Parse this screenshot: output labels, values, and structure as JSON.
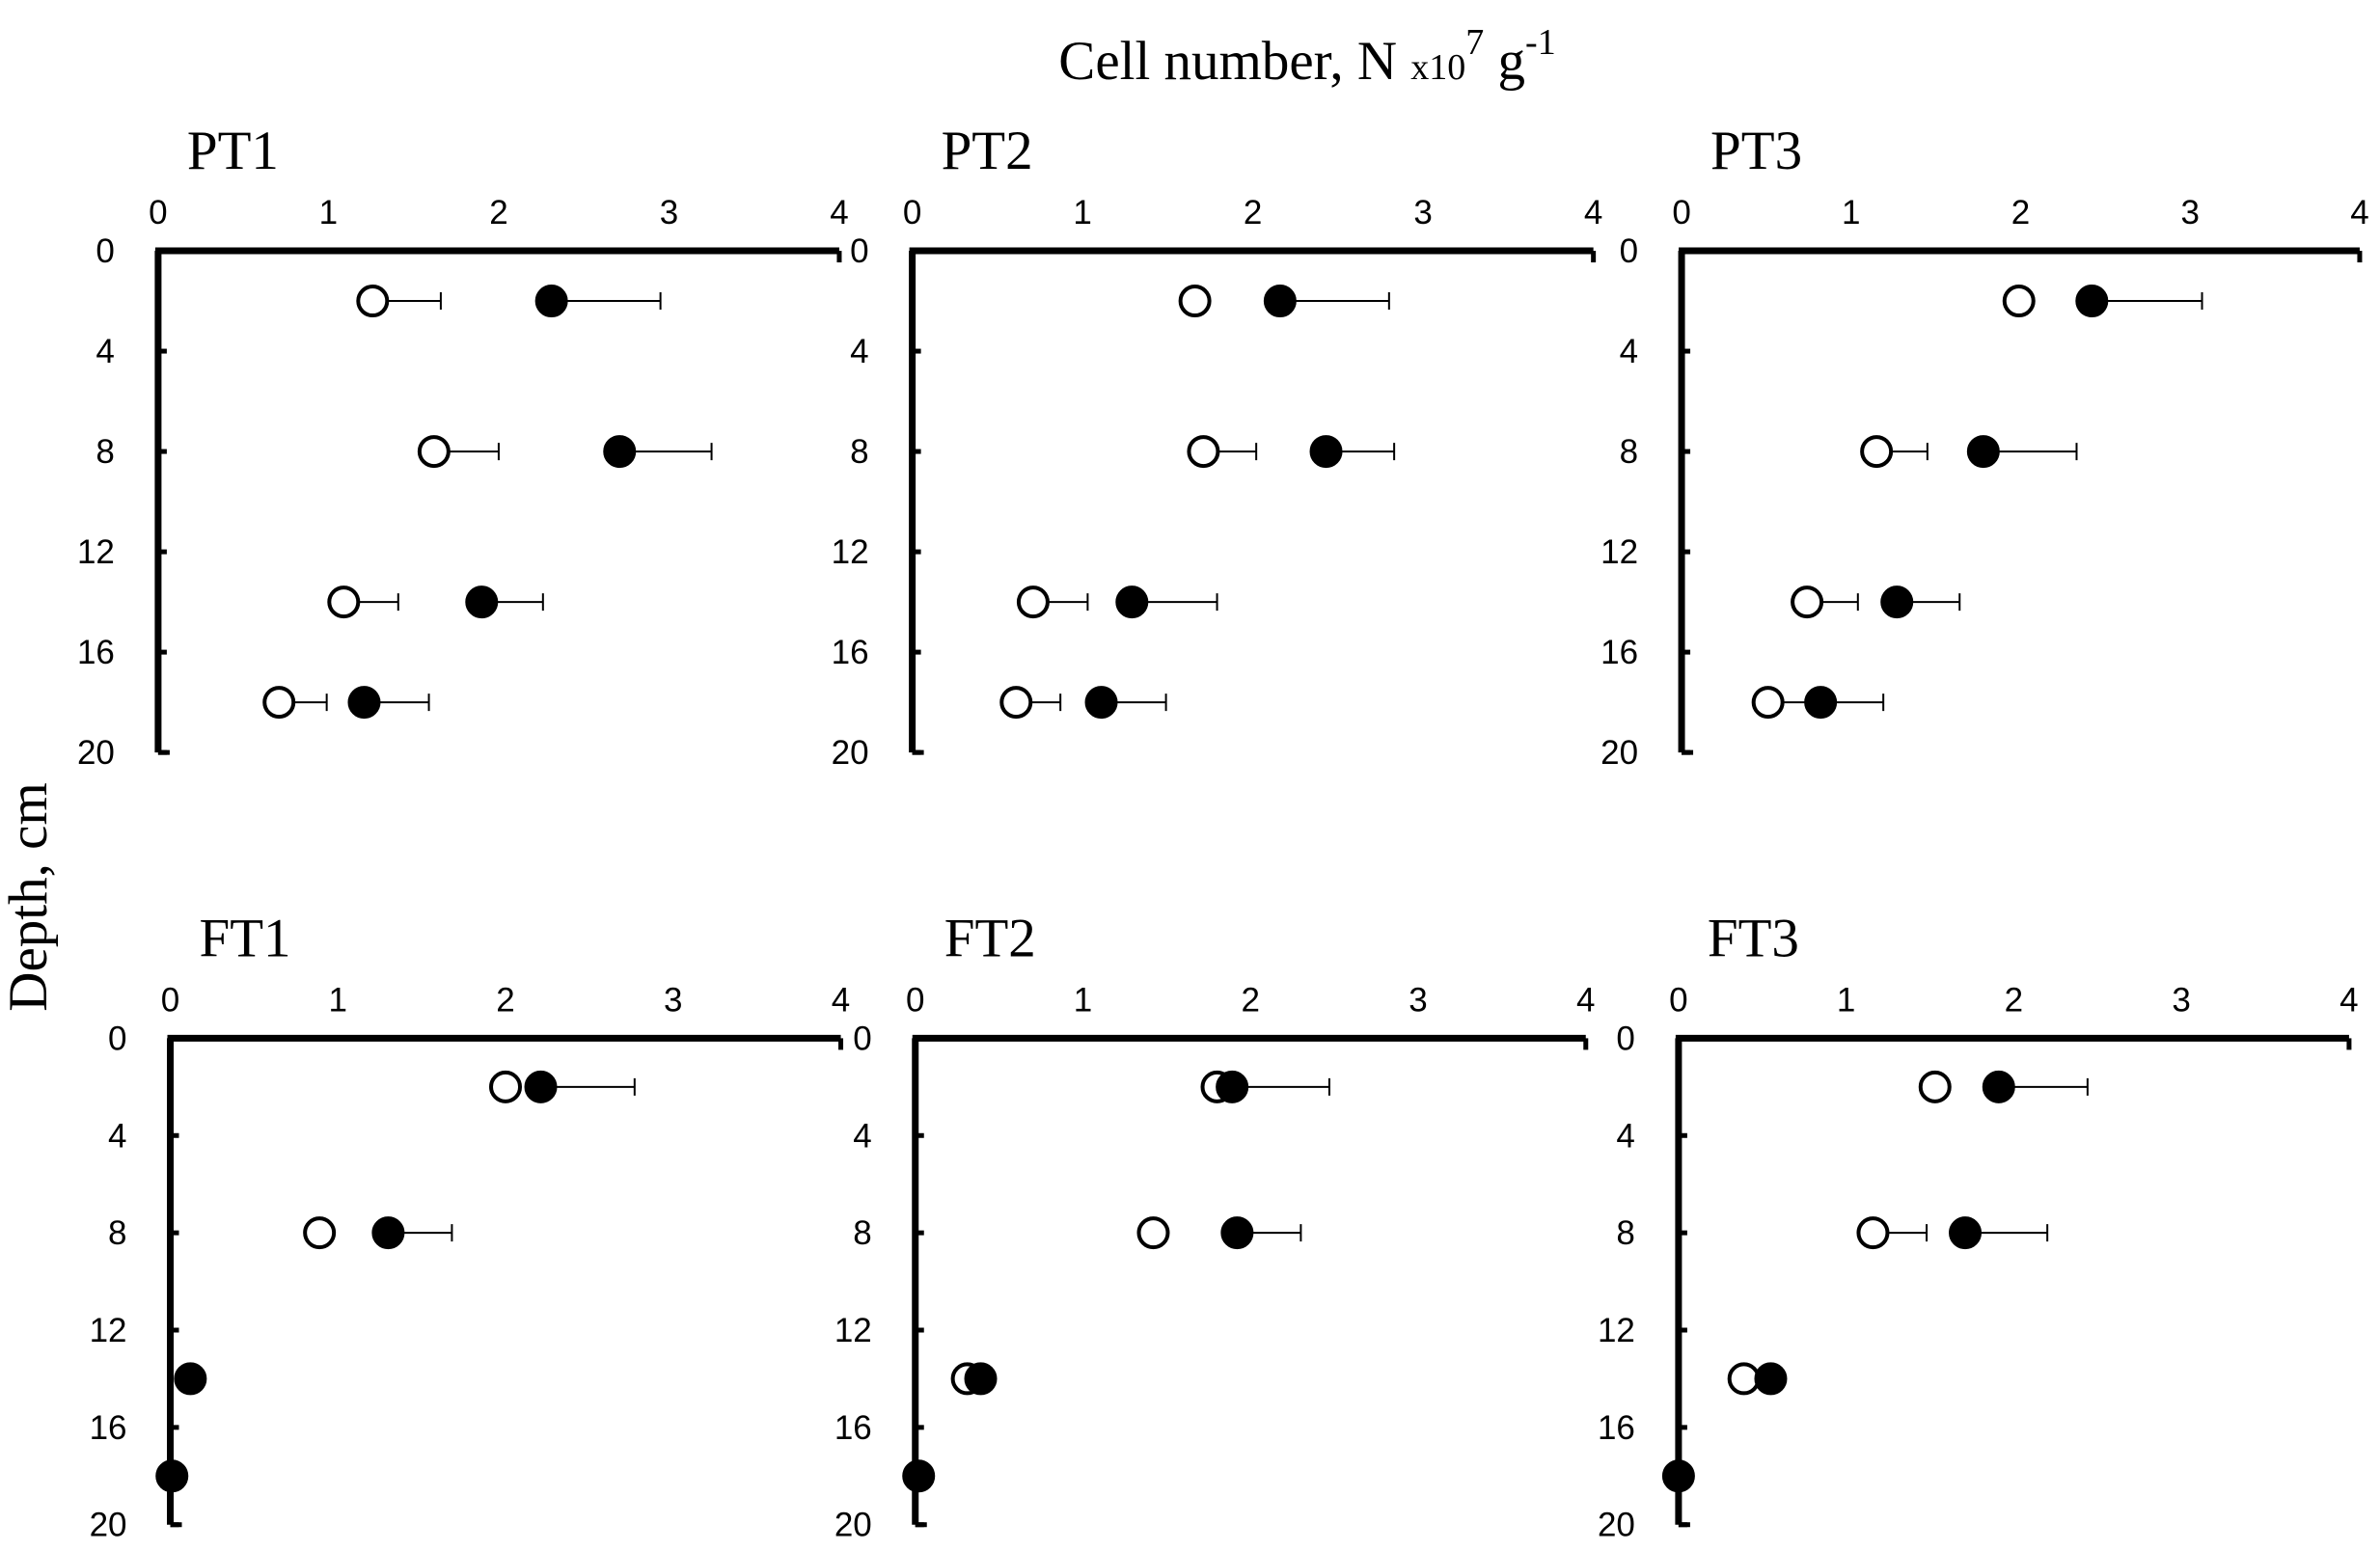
{
  "xlabel_parts": [
    "Cell number, N",
    "x10",
    "7",
    "g",
    "-1"
  ],
  "ylabel": "Depth, cm",
  "chart_data": [
    {
      "type": "scatter",
      "title": "PT1",
      "xlim": [
        0,
        4
      ],
      "xticks": [
        0,
        1,
        2,
        3,
        4
      ],
      "ylim": [
        20,
        0
      ],
      "yticks": [
        0,
        4,
        8,
        12,
        16,
        20
      ],
      "series": [
        {
          "marker": "open",
          "color": "#000000",
          "x": [
            1.26,
            1.62,
            1.09,
            0.71
          ],
          "y": [
            2,
            8,
            14,
            18
          ],
          "error": [
            0.4,
            0.38,
            0.32,
            0.28
          ]
        },
        {
          "marker": "filled",
          "color": "#000000",
          "x": [
            2.31,
            2.71,
            1.9,
            1.21
          ],
          "y": [
            2,
            8,
            14,
            18
          ],
          "error": [
            0.64,
            0.54,
            0.36,
            0.38
          ]
        }
      ]
    },
    {
      "type": "scatter",
      "title": "PT2",
      "xlim": [
        0,
        4
      ],
      "xticks": [
        0,
        1,
        2,
        3,
        4
      ],
      "ylim": [
        20,
        0
      ],
      "yticks": [
        0,
        4,
        8,
        12,
        16,
        20
      ],
      "series": [
        {
          "marker": "open",
          "color": "#000000",
          "x": [
            1.66,
            1.71,
            0.71,
            0.61
          ],
          "y": [
            2,
            8,
            14,
            18
          ],
          "error": [
            null,
            0.31,
            0.32,
            0.26
          ]
        },
        {
          "marker": "filled",
          "color": "#000000",
          "x": [
            2.16,
            2.43,
            1.29,
            1.11
          ],
          "y": [
            2,
            8,
            14,
            18
          ],
          "error": [
            0.64,
            0.4,
            0.5,
            0.38
          ]
        }
      ]
    },
    {
      "type": "scatter",
      "title": "PT3",
      "xlim": [
        0,
        4
      ],
      "xticks": [
        0,
        1,
        2,
        3,
        4
      ],
      "ylim": [
        20,
        0
      ],
      "yticks": [
        0,
        4,
        8,
        12,
        16,
        20
      ],
      "series": [
        {
          "marker": "open",
          "color": "#000000",
          "x": [
            1.99,
            1.15,
            0.74,
            0.51
          ],
          "y": [
            2,
            8,
            14,
            18
          ],
          "error": [
            null,
            0.3,
            0.3,
            0.3
          ]
        },
        {
          "marker": "filled",
          "color": "#000000",
          "x": [
            2.42,
            1.78,
            1.27,
            0.82
          ],
          "y": [
            2,
            8,
            14,
            18
          ],
          "error": [
            0.65,
            0.55,
            0.37,
            0.37
          ]
        }
      ]
    },
    {
      "type": "scatter",
      "title": "FT1",
      "xlim": [
        0,
        4
      ],
      "xticks": [
        0,
        1,
        2,
        3,
        4
      ],
      "ylim": [
        20,
        0
      ],
      "yticks": [
        0,
        4,
        8,
        12,
        16,
        20
      ],
      "series": [
        {
          "marker": "open",
          "color": "#000000",
          "x": [
            2.0,
            0.89,
            null,
            null
          ],
          "y": [
            2,
            8,
            14,
            18
          ],
          "error": [
            null,
            null,
            null,
            null
          ]
        },
        {
          "marker": "filled",
          "color": "#000000",
          "x": [
            2.21,
            1.3,
            0.12,
            0.01
          ],
          "y": [
            2,
            8,
            14,
            18
          ],
          "error": [
            0.56,
            0.38,
            null,
            null
          ]
        }
      ]
    },
    {
      "type": "scatter",
      "title": "FT2",
      "xlim": [
        0,
        4
      ],
      "xticks": [
        0,
        1,
        2,
        3,
        4
      ],
      "ylim": [
        20,
        0
      ],
      "yticks": [
        0,
        4,
        8,
        12,
        16,
        20
      ],
      "series": [
        {
          "marker": "open",
          "color": "#000000",
          "x": [
            1.8,
            1.42,
            0.31,
            null
          ],
          "y": [
            2,
            8,
            14,
            18
          ],
          "error": [
            null,
            null,
            null,
            null
          ]
        },
        {
          "marker": "filled",
          "color": "#000000",
          "x": [
            1.89,
            1.92,
            0.39,
            0.02
          ],
          "y": [
            2,
            8,
            14,
            18
          ],
          "error": [
            0.58,
            0.38,
            null,
            null
          ]
        }
      ]
    },
    {
      "type": "scatter",
      "title": "FT3",
      "xlim": [
        0,
        4
      ],
      "xticks": [
        0,
        1,
        2,
        3,
        4
      ],
      "ylim": [
        20,
        0
      ],
      "yticks": [
        0,
        4,
        8,
        12,
        16,
        20
      ],
      "series": [
        {
          "marker": "open",
          "color": "#000000",
          "x": [
            1.53,
            1.16,
            0.39,
            null
          ],
          "y": [
            2,
            8,
            14,
            18
          ],
          "error": [
            null,
            0.32,
            null,
            null
          ]
        },
        {
          "marker": "filled",
          "color": "#000000",
          "x": [
            1.91,
            1.71,
            0.55,
            0.0
          ],
          "y": [
            2,
            8,
            14,
            18
          ],
          "error": [
            0.53,
            0.49,
            null,
            null
          ]
        }
      ]
    }
  ]
}
